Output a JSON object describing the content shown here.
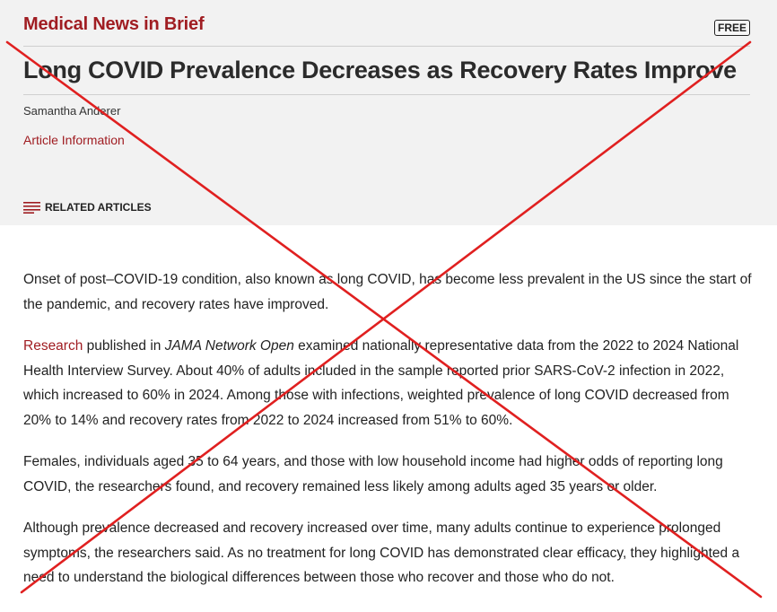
{
  "header": {
    "section": "Medical News in Brief",
    "badge": "FREE",
    "title": "Long COVID Prevalence Decreases as Recovery Rates Improve",
    "author": "Samantha Anderer",
    "article_info": "Article Information",
    "related_label": "RELATED ARTICLES"
  },
  "body": {
    "p1": "Onset of post–COVID-19 condition, also known as long COVID, has become less prevalent in the US since the start of the pandemic, and recovery rates have improved.",
    "p2_link": "Research",
    "p2_mid": " published in ",
    "p2_journal": "JAMA Network Open",
    "p2_rest": " examined nationally representative data from the 2022 to 2024 National Health Interview Survey. About 40% of adults included in the sample reported prior SARS-CoV-2 infection in 2022, which increased to 60% in 2024. Among those with infections, weighted prevalence of long COVID decreased from 20% to 14% and recovery rates from 2022 to 2024 increased from 51% to 60%.",
    "p3": "Females, individuals aged 35 to 64 years, and those with low household income had higher odds of reporting long COVID, the researchers found, and recovery remained less likely among adults aged 35 years or older.",
    "p4": "Although prevalence decreased and recovery increased over time, many adults continue to experience prolonged symptoms, the researchers said. As no treatment for long COVID has demonstrated clear efficacy, they highlighted a need to understand the biological differences between those who recover and those who do not."
  },
  "colors": {
    "accent": "#a01d22",
    "header_bg": "#f2f2f2",
    "cross": "#e02020"
  },
  "icons": {
    "related": "menu-lines-icon"
  }
}
